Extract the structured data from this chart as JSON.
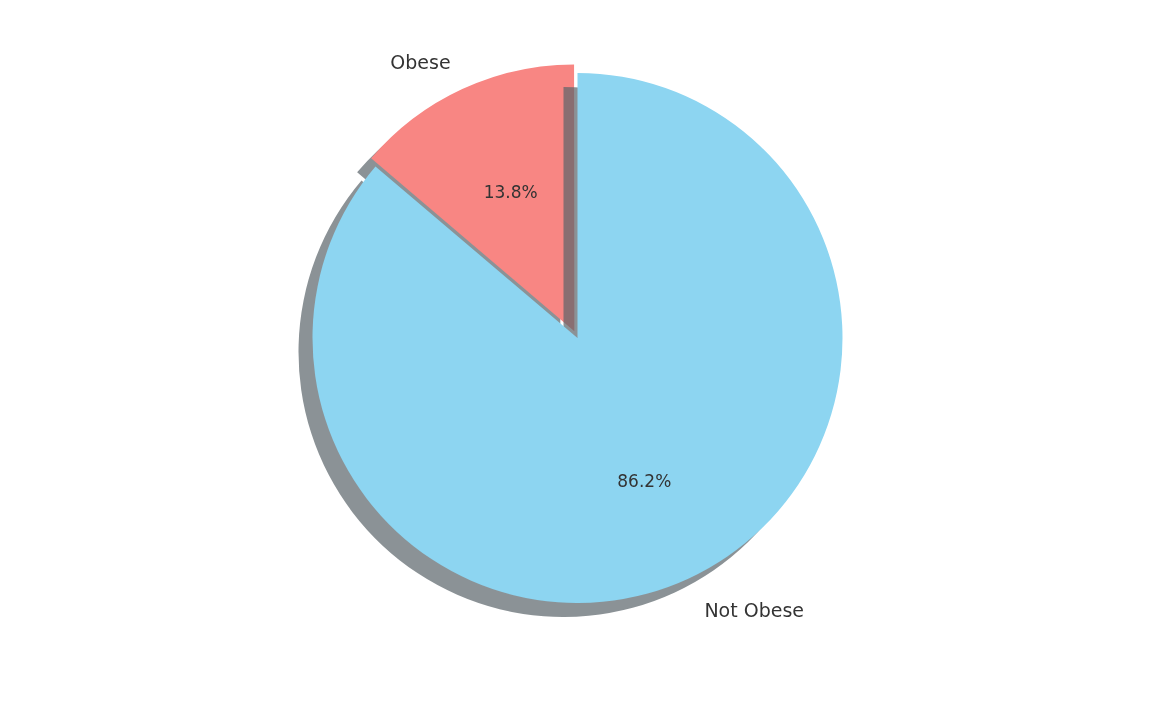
{
  "chart_data": {
    "type": "pie",
    "categories": [
      "Obese",
      "Not Obese"
    ],
    "values": [
      13.8,
      86.2
    ],
    "colors": [
      "#f88683",
      "#8dd5f1"
    ],
    "value_labels": [
      "13.8%",
      "86.2%"
    ],
    "legend": false
  }
}
